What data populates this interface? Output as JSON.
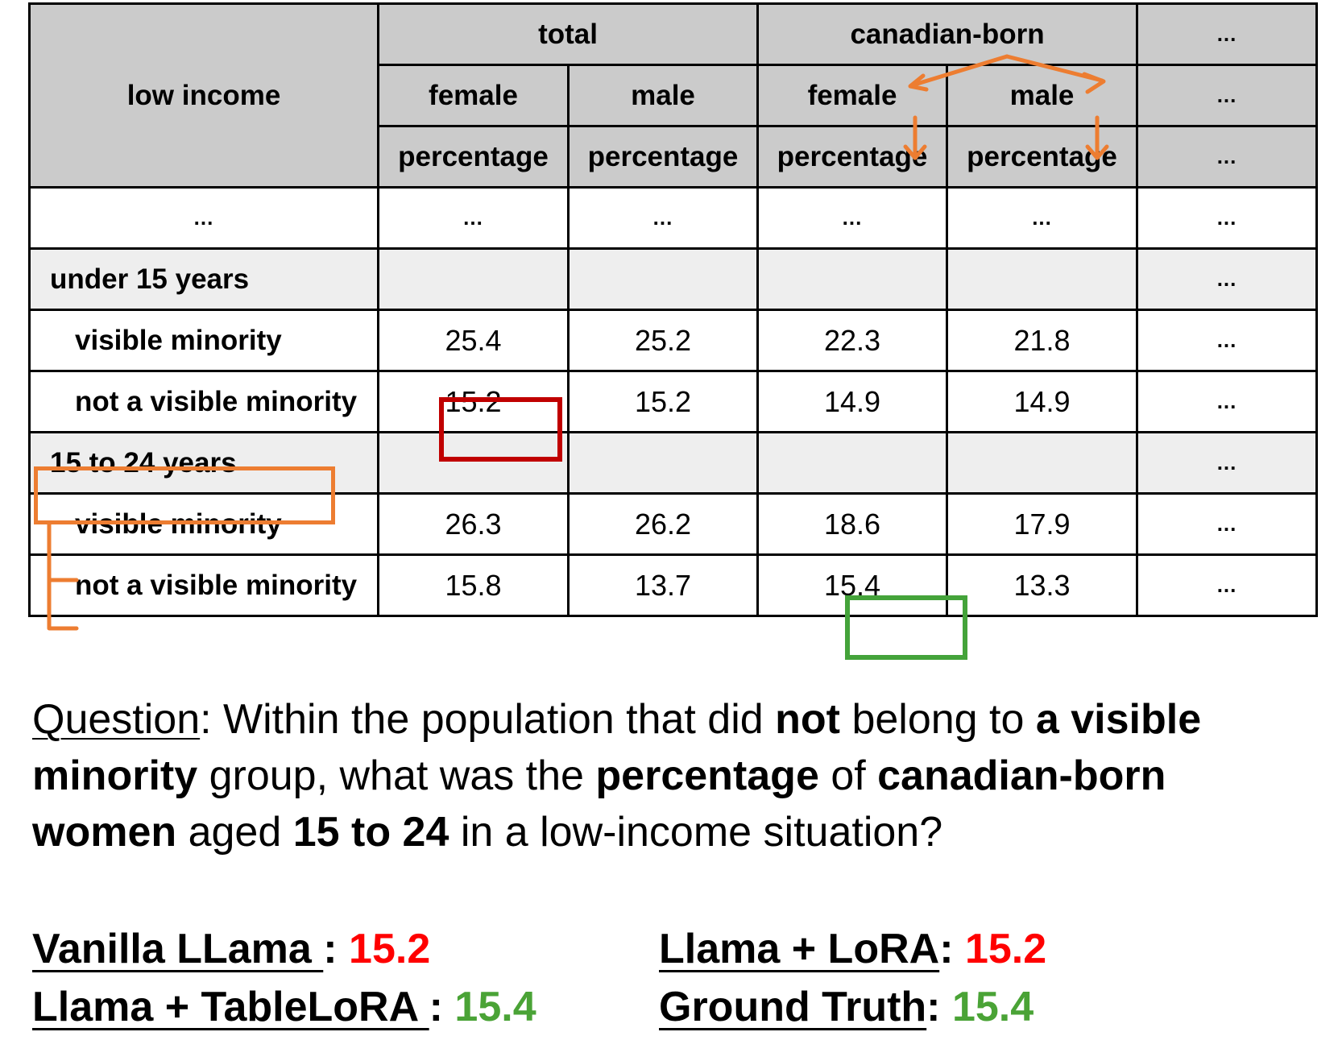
{
  "table": {
    "header": {
      "row_label": "low income",
      "group_total": "total",
      "group_canadian_born": "canadian-born",
      "female": "female",
      "male": "male",
      "percentage": "percentage",
      "ellipsis": "..."
    },
    "ellipsis_row": [
      "...",
      "...",
      "...",
      "...",
      "...",
      "..."
    ],
    "group1": {
      "label": "under 15 years",
      "visible_minority": {
        "label": "visible minority",
        "values": [
          "25.4",
          "25.2",
          "22.3",
          "21.8"
        ]
      },
      "not_visible_minority": {
        "label": "not a visible minority",
        "values": [
          "15.2",
          "15.2",
          "14.9",
          "14.9"
        ]
      }
    },
    "group2": {
      "label": "15 to 24 years",
      "visible_minority": {
        "label": "visible minority",
        "values": [
          "26.3",
          "26.2",
          "18.6",
          "17.9"
        ]
      },
      "not_visible_minority": {
        "label": "not a visible minority",
        "values": [
          "15.8",
          "13.7",
          "15.4",
          "13.3"
        ]
      }
    }
  },
  "question": {
    "label": "Question",
    "p1": ": Within the population that did ",
    "b1": "not",
    "p2": " belong to ",
    "b2": "a visible minority",
    "p3": " group, what was the ",
    "b3": "percentage",
    "p4": " of ",
    "b4": "canadian-born women",
    "p5": " aged ",
    "b5": "15 to 24",
    "p6": " in a low-income situation?"
  },
  "results": {
    "vanilla": {
      "name": "Vanilla LLama ",
      "sep": ": ",
      "value": "15.2"
    },
    "tablelora": {
      "name": "Llama + TableLoRA ",
      "sep": ": ",
      "value": "15.4"
    },
    "lora": {
      "name": "Llama + LoRA",
      "sep": ": ",
      "value": "15.2"
    },
    "ground_truth": {
      "name": "Ground Truth",
      "sep": ": ",
      "value": "15.4"
    }
  },
  "colors": {
    "wrong": "#ff0000",
    "correct": "#4aa336",
    "highlight_wrong": "#c00000",
    "highlight_path": "#ed7d31",
    "header_bg": "#cbcbcb",
    "group_bg": "#eeeeee"
  }
}
